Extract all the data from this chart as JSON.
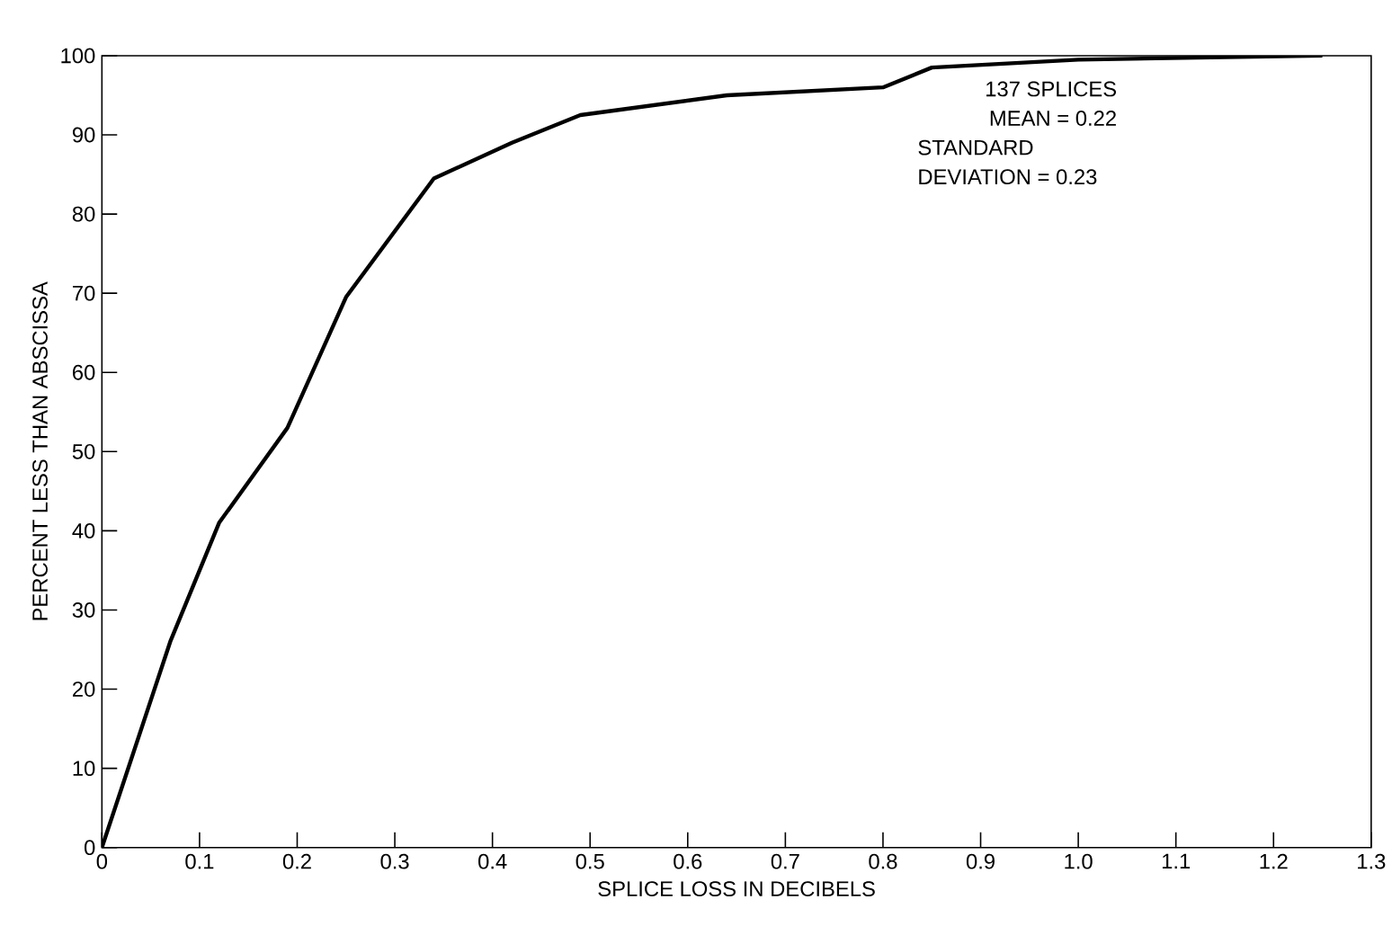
{
  "chart_data": {
    "type": "line",
    "xlabel": "SPLICE LOSS IN DECIBELS",
    "ylabel": "PERCENT LESS THAN ABSCISSA",
    "x": [
      0,
      0.07,
      0.12,
      0.19,
      0.25,
      0.34,
      0.42,
      0.49,
      0.64,
      0.8,
      0.85,
      1.0,
      1.25
    ],
    "values": [
      0,
      26,
      41,
      53,
      69.5,
      84.5,
      89,
      92.5,
      95,
      96,
      98.5,
      99.5,
      100
    ],
    "color": "#000000",
    "xlim": [
      0,
      1.3
    ],
    "xticks": [
      0,
      0.1,
      0.2,
      0.3,
      0.4,
      0.5,
      0.6,
      0.7,
      0.8,
      0.9,
      {
        "value": 1,
        "label": "1.0"
      },
      1.1,
      1.2,
      1.3
    ],
    "ylim": [
      0,
      100
    ],
    "yticks": [
      0,
      10,
      20,
      30,
      40,
      50,
      60,
      70,
      80,
      90,
      100
    ],
    "grid": false,
    "marker": "none",
    "line_style": "solid",
    "annotations": [
      "137 SPLICES",
      "MEAN = 0.22",
      "STANDARD",
      "DEVIATION = 0.23"
    ]
  }
}
